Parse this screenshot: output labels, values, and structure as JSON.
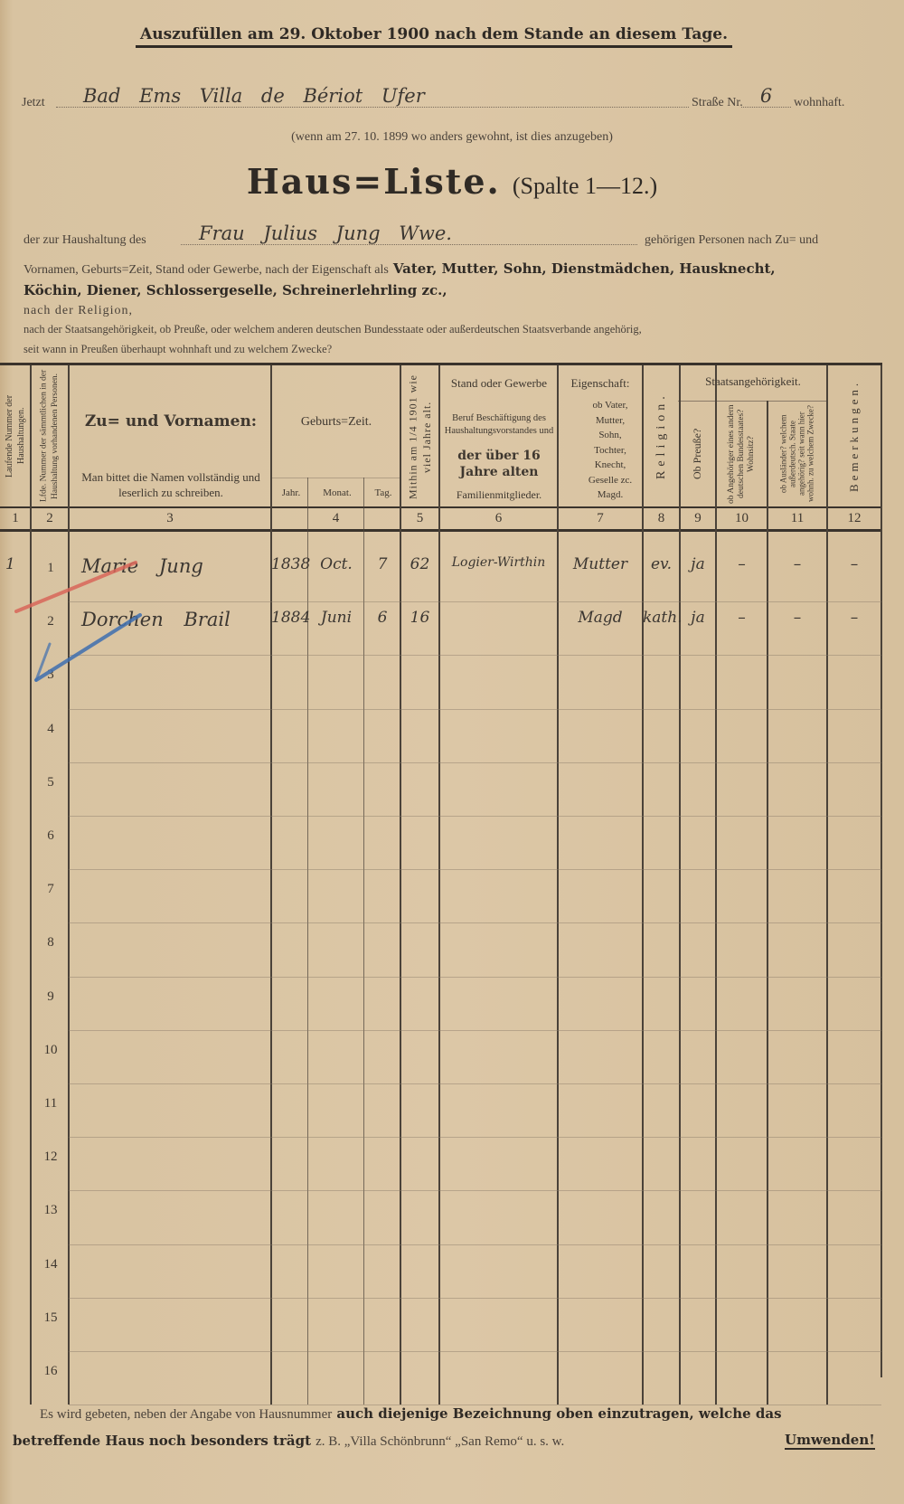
{
  "header": {
    "instruction": "Auszufüllen am 29. Oktober 1900 nach dem Stande an diesem Tage.",
    "address_prefix": "Jetzt",
    "address_value": "Bad Ems Villa de Bériot Ufer",
    "street_label": "Straße Nr.",
    "street_number": "6",
    "address_suffix": "wohnhaft.",
    "previous_note": "(wenn am 27. 10. 1899 wo anders gewohnt, ist dies anzugeben)",
    "title": "Haus=Liste.",
    "title_sub": "(Spalte 1—12.)",
    "household_prefix": "der zur Haushaltung des",
    "household_value": "Frau Julius Jung Wwe.",
    "household_suffix": "gehörigen Personen nach Zu= und",
    "line2_plain": "Vornamen, Geburts=Zeit, Stand oder Gewerbe, nach der Eigenschaft als",
    "line2_bold": "Vater, Mutter, Sohn, Dienstmädchen, Hausknecht,",
    "line3_bold": "Köchin, Diener, Schlossergeselle, Schreinerlehrling zc.,",
    "line4": "nach der Religion,",
    "line5": "nach der Staatsangehörigkeit, ob Preuße, oder welchem anderen deutschen Bundesstaate oder außerdeutschen Staatsverbande angehörig,",
    "line6": "seit wann in Preußen überhaupt wohnhaft und zu welchem Zwecke?"
  },
  "table": {
    "headers": {
      "c1": "Laufende Nummer der Haushaltungen.",
      "c2": "Lfde. Nummer der sämmtlichen in der Haushaltung vorhandenen Personen.",
      "c3_title": "Zu= und Vornamen:",
      "c3_note": "Man bittet die Namen vollständig und leserlich zu schreiben.",
      "c4_title": "Geburts=Zeit.",
      "c4_jahr": "Jahr.",
      "c4_monat": "Monat.",
      "c4_tag": "Tag.",
      "c5": "Mithin am 1/4 1901 wie viel Jahre alt.",
      "c6_a": "Stand oder Gewerbe",
      "c6_b": "Beruf Beschäftigung des Haushaltungsvorstandes und",
      "c6_c": "der über 16 Jahre alten",
      "c6_d": "Familienmitglieder.",
      "c7_title": "Eigenschaft:",
      "c7_note": "ob Vater, Mutter, Sohn, Tochter, Knecht, Geselle zc. Magd.",
      "c8": "Religion.",
      "staats": "Staatsangehörigkeit.",
      "c9": "Ob Preuße?",
      "c10": "ob Angehöriger eines andern deutschen Bundesstaates? Wohnsitz?",
      "c11": "ob Ausländer? welchem außerdeutsch. Staate angehörig? seit wann hier wohnh. zu welchem Zwecke?",
      "c12": "Bemerkungen."
    },
    "column_numbers": [
      "1",
      "2",
      "3",
      "4",
      "5",
      "6",
      "7",
      "8",
      "9",
      "10",
      "11",
      "12"
    ],
    "row_numbers": [
      "1",
      "2",
      "3",
      "4",
      "5",
      "6",
      "7",
      "8",
      "9",
      "10",
      "11",
      "12",
      "13",
      "14",
      "15",
      "16"
    ],
    "rows": [
      {
        "household": "1",
        "name": "Marie Jung",
        "year": "1838",
        "month": "Oct.",
        "day": "7",
        "age": "62",
        "occupation": "Logier-Wirthin",
        "relation": "Mutter",
        "religion": "ev.",
        "prussian": "ja",
        "c10": "–",
        "c11": "–",
        "c12": "–"
      },
      {
        "household": "",
        "name": "Dorchen Brail",
        "year": "1884",
        "month": "Juni",
        "day": "6",
        "age": "16",
        "occupation": "",
        "relation": "Magd",
        "religion": "kath.",
        "prussian": "ja",
        "c10": "–",
        "c11": "–",
        "c12": "–"
      }
    ]
  },
  "footer": {
    "line1_plain": "Es wird gebeten, neben der Angabe von Hausnummer",
    "line1_bold": "auch diejenige Bezeichnung oben einzutragen, welche das",
    "line2_bold": "betreffende Haus noch besonders trägt",
    "line2_plain": "z. B. „Villa Schönbrunn“ „San Remo“ u. s. w.",
    "turn_over": "Umwenden!"
  },
  "colors": {
    "paper": "#dcc7a6",
    "ink": "#2f2a25",
    "red_pencil": "#d9675a",
    "blue_pencil": "#3f6fb0"
  }
}
